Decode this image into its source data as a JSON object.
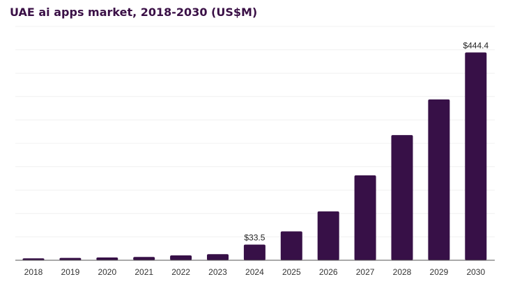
{
  "chart_data": {
    "type": "bar",
    "title": "UAE ai apps market, 2018-2030 (US$M)",
    "xlabel": "",
    "ylabel": "",
    "categories": [
      "2018",
      "2019",
      "2020",
      "2021",
      "2022",
      "2023",
      "2024",
      "2025",
      "2026",
      "2027",
      "2028",
      "2029",
      "2030"
    ],
    "values": [
      4.0,
      5.0,
      6.0,
      7.0,
      10.4,
      13.0,
      33.5,
      61.7,
      104.5,
      181.6,
      267.6,
      344.0,
      444.4
    ],
    "data_labels": {
      "2024": "$33.5",
      "2030": "$444.4"
    },
    "ylim": [
      0,
      500
    ],
    "grid": true,
    "grid_step": 50,
    "bar_color": "#371047",
    "legend": "none"
  }
}
